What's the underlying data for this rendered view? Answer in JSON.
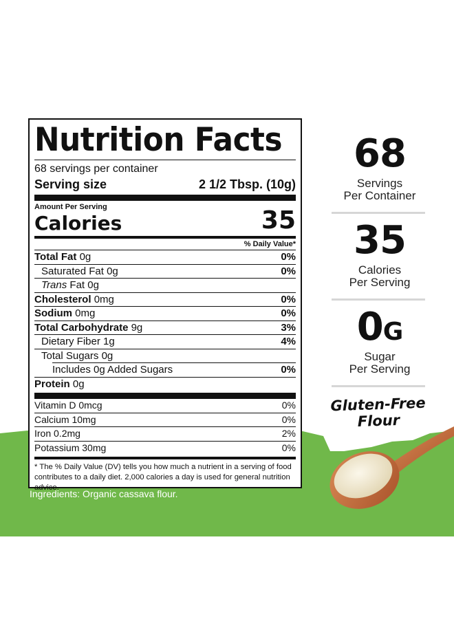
{
  "colors": {
    "green": "#70b84a",
    "label_border": "#111111",
    "spoon_wood": "#c36a3a",
    "flour": "#efe6cc"
  },
  "label": {
    "title": "Nutrition Facts",
    "servings_per_container": "68 servings per container",
    "serving_size_label": "Serving size",
    "serving_size_value": "2 1/2 Tbsp. (10g)",
    "amount_per_serving": "Amount Per Serving",
    "calories_label": "Calories",
    "calories_value": "35",
    "dv_header": "% Daily Value*",
    "nutrients": [
      {
        "name": "Total Fat",
        "amount": "0g",
        "dv": "0%"
      },
      {
        "name": "Saturated Fat",
        "amount": "0g",
        "dv": "0%"
      },
      {
        "name_italic": "Trans",
        "name_rest": "Fat",
        "amount": "0g",
        "dv": ""
      },
      {
        "name": "Cholesterol",
        "amount": "0mg",
        "dv": "0%"
      },
      {
        "name": "Sodium",
        "amount": "0mg",
        "dv": "0%"
      },
      {
        "name": "Total Carbohydrate",
        "amount": "9g",
        "dv": "3%"
      },
      {
        "name": "Dietary Fiber",
        "amount": "1g",
        "dv": "4%"
      },
      {
        "name": "Total Sugars",
        "amount": "0g",
        "dv": ""
      },
      {
        "name": "Includes 0g Added Sugars",
        "amount": "",
        "dv": "0%"
      },
      {
        "name": "Protein",
        "amount": "0g",
        "dv": ""
      }
    ],
    "vitamins": [
      {
        "name": "Vitamin D",
        "amount": "0mcg",
        "dv": "0%"
      },
      {
        "name": "Calcium",
        "amount": "10mg",
        "dv": "0%"
      },
      {
        "name": "Iron",
        "amount": "0.2mg",
        "dv": "2%"
      },
      {
        "name": "Potassium",
        "amount": "30mg",
        "dv": "0%"
      }
    ],
    "footnote": "* The % Daily Value (DV) tells you how much a nutrient in a serving of food contributes to a daily diet. 2,000 calories a day is used for general nutrition advice."
  },
  "ingredients": "Ingredients: Organic cassava flour.",
  "stats": [
    {
      "value": "68",
      "unit": "",
      "caption_1": "Servings",
      "caption_2": "Per Container"
    },
    {
      "value": "35",
      "unit": "",
      "caption_1": "Calories",
      "caption_2": "Per Serving"
    },
    {
      "value": "0",
      "unit": "G",
      "caption_1": "Sugar",
      "caption_2": "Per Serving"
    }
  ],
  "badge": {
    "line_1": "Gluten-Free",
    "line_2": "Flour"
  }
}
